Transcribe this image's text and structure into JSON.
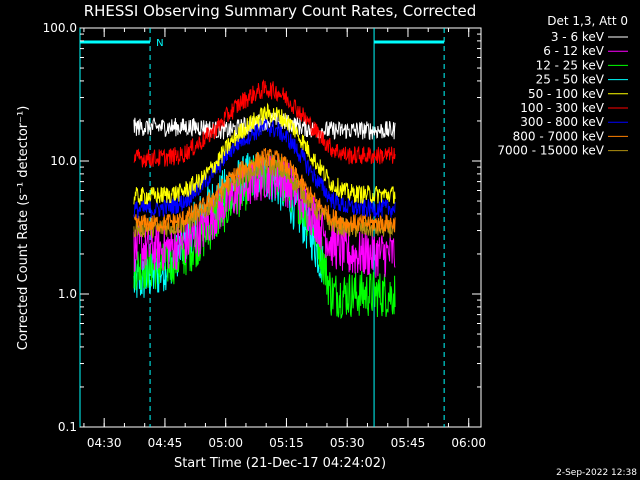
{
  "chart_data": {
    "type": "line",
    "title": "RHESSI Observing Summary Count Rates, Corrected",
    "xlabel": "Start Time (21-Dec-17 04:24:02)",
    "ylabel": "Corrected Count Rate (s⁻¹ detector⁻¹)",
    "y_scale": "log",
    "ylim": [
      0.1,
      100.0
    ],
    "y_ticks": [
      {
        "value": 0.1,
        "label": "0.1"
      },
      {
        "value": 1.0,
        "label": "1.0"
      },
      {
        "value": 10.0,
        "label": "10.0"
      },
      {
        "value": 100.0,
        "label": "100.0"
      }
    ],
    "x_unit": "minutes from 04:24:02",
    "xlim": [
      0,
      99
    ],
    "x_ticks": [
      {
        "value": 5.97,
        "label": "04:30"
      },
      {
        "value": 20.97,
        "label": "04:45"
      },
      {
        "value": 35.97,
        "label": "05:00"
      },
      {
        "value": 50.97,
        "label": "05:15"
      },
      {
        "value": 65.97,
        "label": "05:30"
      },
      {
        "value": 80.97,
        "label": "05:45"
      },
      {
        "value": 95.97,
        "label": "06:00"
      }
    ],
    "legend_header": "Det 1,3, Att 0",
    "legend_position": "top-right, outside plot",
    "data_start": 13.3,
    "data_end": 77.8,
    "night_intervals": [
      [
        0,
        17.3
      ],
      [
        72.6,
        89.9
      ]
    ],
    "night_marker": "N",
    "series": [
      {
        "name": "3 - 6 keV",
        "color": "#ffffff",
        "x": [
          13.3,
          20,
          25,
          30,
          34,
          37,
          40,
          43,
          46,
          49,
          52,
          55,
          58,
          62,
          66,
          70,
          74,
          77.8
        ],
        "y": [
          18,
          18,
          18,
          18,
          17,
          17,
          18,
          19,
          20,
          20,
          19,
          18,
          17,
          17,
          17,
          17,
          17,
          17
        ]
      },
      {
        "name": "6 - 12 keV",
        "color": "#ff00ff",
        "x": [
          13.3,
          20,
          25,
          30,
          34,
          37,
          40,
          43,
          46,
          49,
          52,
          55,
          58,
          62,
          66,
          70,
          74,
          77.8
        ],
        "y": [
          2.2,
          2.2,
          2.3,
          3,
          4.2,
          5.2,
          6.2,
          7,
          7.8,
          7.6,
          6.4,
          5,
          3.8,
          2.4,
          2.0,
          2.0,
          2.0,
          2.0
        ]
      },
      {
        "name": "12 - 25 keV",
        "color": "#00ff00",
        "x": [
          13.3,
          20,
          25,
          30,
          34,
          37,
          40,
          43,
          46,
          49,
          52,
          55,
          58,
          62,
          66,
          70,
          74,
          77.8
        ],
        "y": [
          1.6,
          1.6,
          1.9,
          2.6,
          3.8,
          4.8,
          6,
          7.2,
          8,
          7.6,
          6.2,
          4.6,
          3.2,
          1.0,
          1.0,
          1.0,
          1.0,
          1.0
        ]
      },
      {
        "name": "25 - 50 keV",
        "color": "#00ffff",
        "x": [
          13.3,
          16,
          19,
          22,
          25,
          28,
          30,
          33,
          36,
          39,
          42,
          45,
          48,
          51,
          54,
          57,
          60
        ],
        "y": [
          1.2,
          1.3,
          1.4,
          1.7,
          2.2,
          3.2,
          4.0,
          5,
          6,
          7,
          7.8,
          8,
          7,
          5.5,
          4,
          2.8,
          1.6
        ]
      },
      {
        "name": "50 - 100 keV",
        "color": "#ffff00",
        "x": [
          13.3,
          20,
          25,
          30,
          34,
          37,
          40,
          43,
          46,
          49,
          52,
          55,
          58,
          62,
          66,
          70,
          74,
          77.8
        ],
        "y": [
          5.4,
          5.5,
          5.8,
          7.2,
          10,
          13.5,
          17,
          20,
          23,
          22,
          19,
          14,
          10,
          6.8,
          5.8,
          5.6,
          5.6,
          5.6
        ]
      },
      {
        "name": "100 - 300 keV",
        "color": "#ff0000",
        "x": [
          13.3,
          20,
          25,
          30,
          34,
          37,
          40,
          43,
          46,
          49,
          52,
          55,
          58,
          62,
          66,
          70,
          74,
          77.8
        ],
        "y": [
          10.5,
          10.5,
          11,
          14,
          18,
          23,
          28,
          32,
          35,
          33,
          28,
          22,
          17,
          12.5,
          11,
          11,
          11,
          11
        ]
      },
      {
        "name": "300 - 800 keV",
        "color": "#0000ff",
        "x": [
          13.3,
          20,
          25,
          30,
          34,
          37,
          40,
          43,
          46,
          49,
          52,
          55,
          58,
          62,
          66,
          70,
          74,
          77.8
        ],
        "y": [
          4.3,
          4.4,
          4.8,
          6.5,
          9,
          12,
          14.5,
          16.5,
          18,
          17,
          14,
          10.5,
          7.5,
          5.2,
          4.5,
          4.4,
          4.4,
          4.4
        ]
      },
      {
        "name": "800 - 7000 keV",
        "color": "#ff8000",
        "x": [
          13.3,
          20,
          25,
          30,
          34,
          37,
          40,
          43,
          46,
          49,
          52,
          55,
          58,
          62,
          66,
          70,
          74,
          77.8
        ],
        "y": [
          3.4,
          3.4,
          3.6,
          4.4,
          5.8,
          7.3,
          8.6,
          9.8,
          10.8,
          10.2,
          8.6,
          6.6,
          5,
          3.8,
          3.4,
          3.4,
          3.4,
          3.4
        ]
      },
      {
        "name": "7000 - 15000 keV",
        "color": "#b09010",
        "x": [
          13.3,
          20,
          25,
          30,
          34,
          37,
          40,
          43,
          46,
          49,
          52,
          55,
          58,
          62,
          66,
          70,
          74,
          77.8
        ],
        "y": [
          3.1,
          3.1,
          3.3,
          4.0,
          5.2,
          6.5,
          7.6,
          8.6,
          9.2,
          8.8,
          7.4,
          5.8,
          4.4,
          3.4,
          3.1,
          3.1,
          3.1,
          3.1
        ]
      }
    ]
  },
  "footer": {
    "date_stamp": "2-Sep-2022 12:38"
  }
}
